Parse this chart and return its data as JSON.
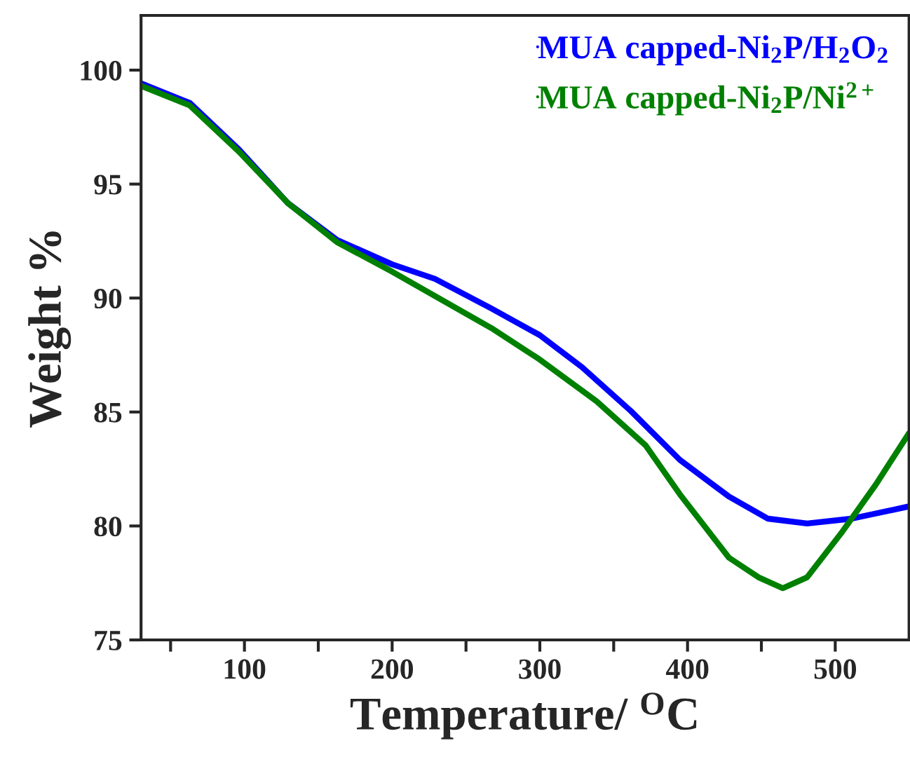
{
  "chart_data": {
    "type": "line",
    "xlabel": "Temperature/ $^{O}$C",
    "ylabel": "Weight %",
    "xlim": [
      30,
      550
    ],
    "ylim": [
      75,
      102.4
    ],
    "xticks": [
      {
        "value": 50,
        "label": null
      },
      100,
      {
        "value": 150,
        "label": null
      },
      200,
      {
        "value": 250,
        "label": null
      },
      300,
      {
        "value": 350,
        "label": null
      },
      400,
      {
        "value": 450,
        "label": null
      },
      500
    ],
    "yticks": [
      75,
      80,
      85,
      90,
      95,
      100
    ],
    "grid": false,
    "legend": "top right",
    "line_style": "solid",
    "marker": "none",
    "series": [
      {
        "name": "MUA capped-Ni$_{2}$P/H$_{2}$O$_{2}$",
        "color": "#0000ff",
        "x": [
          30,
          63,
          96.3,
          129.5,
          162.7,
          200,
          229,
          267,
          300,
          328.5,
          361.7,
          394.8,
          428,
          454.5,
          481,
          511,
          550
        ],
        "values": [
          99.42,
          98.56,
          96.52,
          94.16,
          92.55,
          91.48,
          90.84,
          89.55,
          88.37,
          86.97,
          85.04,
          82.9,
          81.29,
          80.32,
          80.11,
          80.32,
          80.86
        ]
      },
      {
        "name": "MUA capped-Ni$_{2}$P/Ni$^{2+}$",
        "color": "#008000",
        "x": [
          30,
          63,
          96.3,
          129.5,
          162.7,
          200,
          229,
          267,
          300,
          338.5,
          371.6,
          394.8,
          428,
          448,
          464.5,
          481,
          504,
          527.5,
          550
        ],
        "values": [
          99.31,
          98.45,
          96.42,
          94.16,
          92.45,
          91.16,
          90.09,
          88.69,
          87.3,
          85.47,
          83.54,
          81.39,
          78.61,
          77.75,
          77.27,
          77.75,
          79.68,
          81.82,
          84.08
        ]
      }
    ]
  }
}
